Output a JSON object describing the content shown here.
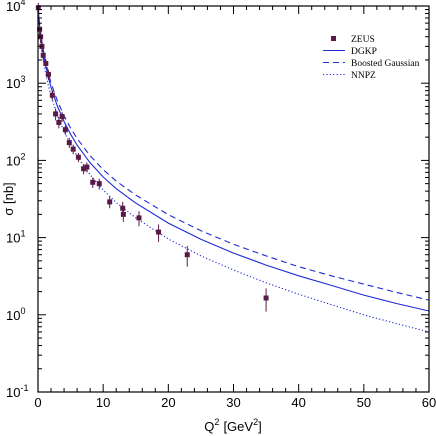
{
  "chart_data": {
    "type": "scatter",
    "title": "",
    "xlabel": "Q",
    "xlabel_sup": "2",
    "xunit": "[GeV",
    "xunit_sup": "2",
    "xunit_close": "]",
    "ylabel": "σ [nb]",
    "xlim": [
      0,
      60
    ],
    "ylim_log10": [
      -1,
      4
    ],
    "yscale": "log",
    "grid": false,
    "legend_position": "top-right",
    "x_ticks": [
      {
        "value": 0,
        "label": "0"
      },
      {
        "value": 10,
        "label": "10"
      },
      {
        "value": 20,
        "label": "20"
      },
      {
        "value": 30,
        "label": "30"
      },
      {
        "value": 40,
        "label": "40"
      },
      {
        "value": 50,
        "label": "50"
      },
      {
        "value": 60,
        "label": "60"
      }
    ],
    "y_ticks": [
      {
        "exp": -1,
        "base": "10",
        "sup": "-1"
      },
      {
        "exp": 0,
        "base": "10",
        "sup": "0"
      },
      {
        "exp": 1,
        "base": "10",
        "sup": "1"
      },
      {
        "exp": 2,
        "base": "10",
        "sup": "2"
      },
      {
        "exp": 3,
        "base": "10",
        "sup": "3"
      },
      {
        "exp": 4,
        "base": "10",
        "sup": "4"
      }
    ],
    "series": [
      {
        "name": "ZEUS",
        "kind": "points",
        "color": "#5a1a48",
        "points": [
          {
            "x": 0.05,
            "y": 9500,
            "err": 1500
          },
          {
            "x": 0.25,
            "y": 5000,
            "err": 900
          },
          {
            "x": 0.4,
            "y": 4000,
            "err": 700
          },
          {
            "x": 0.6,
            "y": 3000,
            "err": 450
          },
          {
            "x": 0.8,
            "y": 2300,
            "err": 350
          },
          {
            "x": 1.2,
            "y": 1800,
            "err": 250
          },
          {
            "x": 1.6,
            "y": 1300,
            "err": 200
          },
          {
            "x": 2.2,
            "y": 700,
            "err": 100
          },
          {
            "x": 2.7,
            "y": 400,
            "err": 70
          },
          {
            "x": 3.2,
            "y": 310,
            "err": 50
          },
          {
            "x": 3.7,
            "y": 370,
            "err": 55
          },
          {
            "x": 4.2,
            "y": 250,
            "err": 35
          },
          {
            "x": 4.8,
            "y": 170,
            "err": 25
          },
          {
            "x": 5.4,
            "y": 140,
            "err": 20
          },
          {
            "x": 6.2,
            "y": 110,
            "err": 15
          },
          {
            "x": 7.0,
            "y": 78,
            "err": 12
          },
          {
            "x": 7.5,
            "y": 82,
            "err": 12
          },
          {
            "x": 8.4,
            "y": 52,
            "err": 8
          },
          {
            "x": 9.4,
            "y": 50,
            "err": 8
          },
          {
            "x": 11.0,
            "y": 29,
            "err": 5
          },
          {
            "x": 13.0,
            "y": 24,
            "err": 5
          },
          {
            "x": 13.1,
            "y": 20,
            "err": 4
          },
          {
            "x": 15.5,
            "y": 18,
            "err": 4
          },
          {
            "x": 18.5,
            "y": 11.8,
            "err": 3
          },
          {
            "x": 22.9,
            "y": 6.0,
            "err": 1.8
          },
          {
            "x": 35.0,
            "y": 1.65,
            "err": 0.55
          }
        ]
      },
      {
        "name": "DGKP",
        "kind": "line",
        "style": "solid",
        "color": "#1f2bd6",
        "x": [
          0.05,
          0.2,
          0.5,
          1,
          1.5,
          2,
          3,
          4,
          5,
          6,
          8,
          10,
          12,
          15,
          20,
          25,
          30,
          35,
          40,
          45,
          50,
          55,
          60
        ],
        "y": [
          9000,
          5900,
          3510,
          1970,
          1270,
          883,
          500,
          318,
          218,
          158,
          93,
          61,
          43,
          28,
          15.4,
          9.5,
          6.3,
          4.4,
          3.2,
          2.4,
          1.8,
          1.4,
          1.12
        ]
      },
      {
        "name": "Boosted Gaussian",
        "kind": "line",
        "style": "dashed",
        "color": "#1f2bd6",
        "x": [
          0.05,
          0.2,
          0.5,
          1,
          1.5,
          2,
          3,
          4,
          5,
          6,
          8,
          10,
          12,
          15,
          20,
          25,
          30,
          35,
          40,
          45,
          50,
          55,
          60
        ],
        "y": [
          9500,
          6400,
          3860,
          2200,
          1440,
          1010,
          585,
          378,
          262,
          192,
          115,
          76,
          54,
          35.5,
          19.8,
          12.3,
          8.2,
          5.8,
          4.2,
          3.2,
          2.5,
          1.95,
          1.55
        ]
      },
      {
        "name": "NNPZ",
        "kind": "line",
        "style": "dotted",
        "color": "#1f2bd6",
        "x": [
          0.05,
          0.2,
          0.5,
          1,
          1.5,
          2,
          3,
          4,
          5,
          6,
          8,
          10,
          12,
          15,
          20,
          25,
          30,
          35,
          40,
          45,
          50,
          55,
          60
        ],
        "y": [
          8000,
          5000,
          2900,
          1600,
          1000,
          690,
          380,
          238,
          160,
          114,
          65,
          41.5,
          28.5,
          18,
          9.6,
          5.8,
          3.8,
          2.6,
          1.85,
          1.35,
          1.0,
          0.77,
          0.6
        ]
      }
    ]
  }
}
